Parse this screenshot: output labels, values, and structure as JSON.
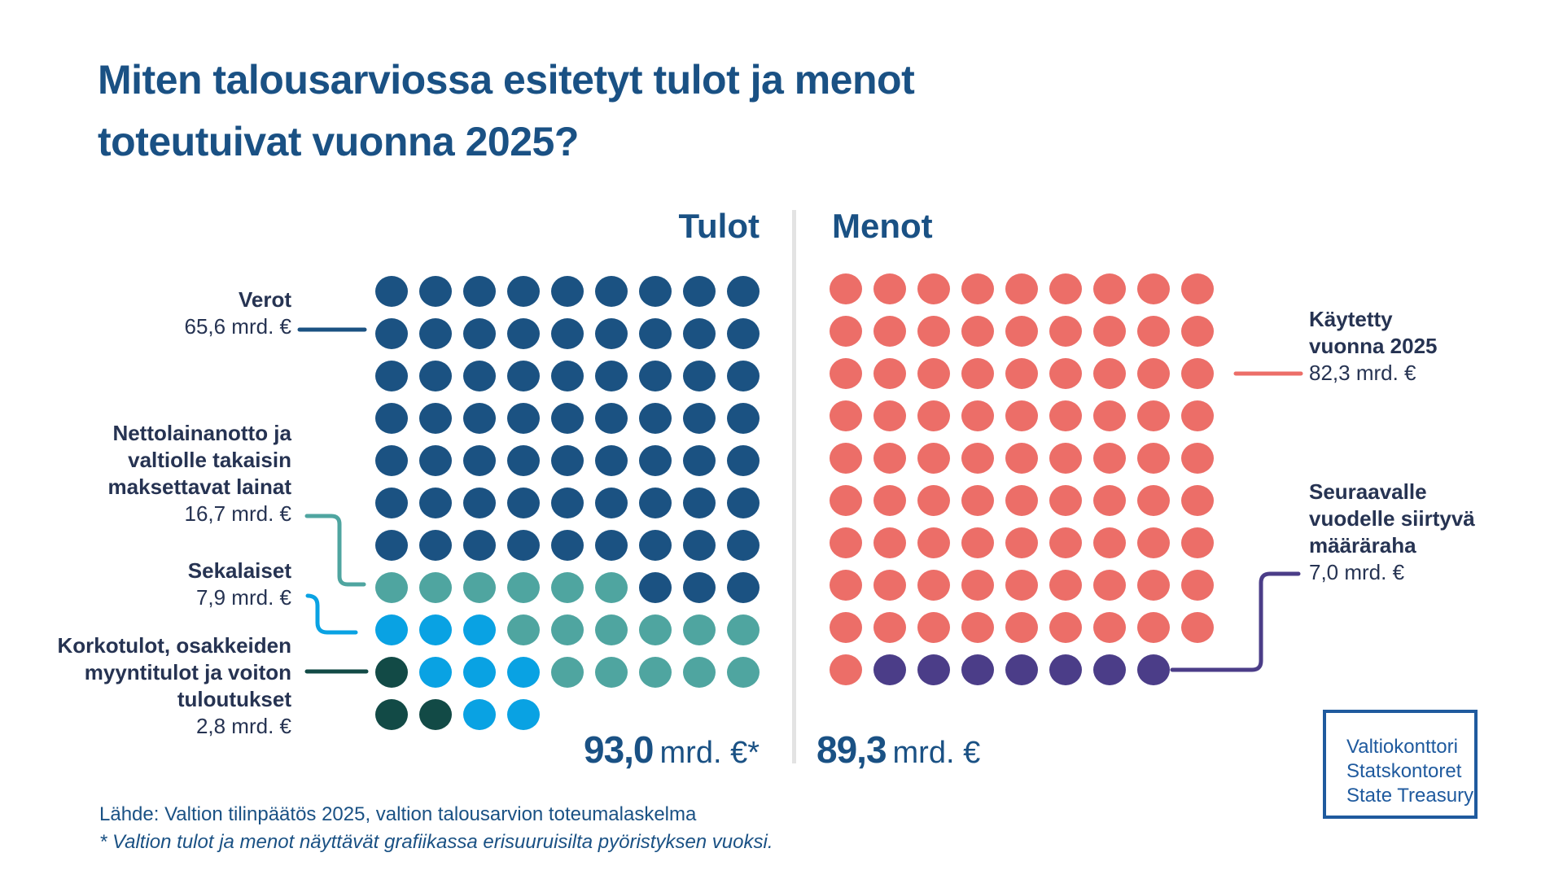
{
  "header": {
    "title_lines": [
      "Miten talousarviossa esitetyt tulot ja menot",
      "toteutuivat vuonna 2025?"
    ]
  },
  "palette": {
    "verot": "#1b5282",
    "netto": "#4fa5a0",
    "seka": "#09a2e3",
    "korko": "#124a46",
    "kaytetty": "#ec6e68",
    "seuraava": "#4b3d88",
    "heading_blue": "#1a5184",
    "label_navy": "#263352",
    "divider_gray": "#e3e3e3",
    "logo_blue": "#1f5a9e"
  },
  "chart_data": {
    "type": "waffle",
    "unit": "mrd. €",
    "dot_value": 1,
    "letter_to_category": {
      "B": "verot",
      "T": "netto",
      "L": "seka",
      "G": "korko",
      "S": "kaytetty",
      "P": "seuraava"
    },
    "columns": [
      {
        "key": "tulot",
        "header": "Tulot",
        "total_value": "93,0",
        "total_unit": "mrd. €*",
        "total_numeric": 93.0,
        "grid_size": {
          "cols": 9,
          "rows": 11
        },
        "grid_rows": [
          "BBBBBBBBB",
          "BBBBBBBBB",
          "BBBBBBBBB",
          "BBBBBBBBB",
          "BBBBBBBBB",
          "BBBBBBBBB",
          "BBBBBBBBB",
          "TTTTTTBBB",
          "LLLTTTTTT",
          "GLLLTTTTT",
          "GGLL"
        ],
        "categories": [
          {
            "key": "verot",
            "letter": "B",
            "label_lines": [
              "Verot"
            ],
            "value_label": "65,6 mrd. €",
            "value": 65.6,
            "color": "#1b5282",
            "dot_count": 66
          },
          {
            "key": "netto",
            "letter": "T",
            "label_lines": [
              "Nettolainanotto ja",
              "valtiolle takaisin",
              "maksettavat lainat"
            ],
            "value_label": "16,7 mrd. €",
            "value": 16.7,
            "color": "#4fa5a0",
            "dot_count": 17
          },
          {
            "key": "seka",
            "letter": "L",
            "label_lines": [
              "Sekalaiset"
            ],
            "value_label": "7,9 mrd. €",
            "value": 7.9,
            "color": "#09a2e3",
            "dot_count": 8
          },
          {
            "key": "korko",
            "letter": "G",
            "label_lines": [
              "Korkotulot, osakkeiden",
              "myyntitulot ja voiton",
              "tuloutukset"
            ],
            "value_label": "2,8 mrd. €",
            "value": 2.8,
            "color": "#124a46",
            "dot_count": 3
          }
        ]
      },
      {
        "key": "menot",
        "header": "Menot",
        "total_value": "89,3",
        "total_unit": "mrd. €",
        "total_numeric": 89.3,
        "grid_size": {
          "cols": 9,
          "rows": 10
        },
        "grid_rows": [
          "SSSSSSSSS",
          "SSSSSSSSS",
          "SSSSSSSSS",
          "SSSSSSSSS",
          "SSSSSSSSS",
          "SSSSSSSSS",
          "SSSSSSSSS",
          "SSSSSSSSS",
          "SSSSSSSSS",
          "SPPPPPPP"
        ],
        "categories": [
          {
            "key": "kaytetty",
            "letter": "S",
            "label_lines": [
              "Käytetty",
              "vuonna 2025"
            ],
            "value_label": "82,3 mrd. €",
            "value": 82.3,
            "color": "#ec6e68",
            "dot_count": 82
          },
          {
            "key": "seuraava",
            "letter": "P",
            "label_lines": [
              "Seuraavalle",
              "vuodelle siirtyvä",
              "määräraha"
            ],
            "value_label": "7,0 mrd. €",
            "value": 7.0,
            "color": "#4b3d88",
            "dot_count": 7
          }
        ]
      }
    ]
  },
  "footer": {
    "source": "Lähde: Valtion tilinpäätös 2025, valtion talousarvion toteumalaskelma",
    "footnote": "* Valtion tulot ja menot näyttävät grafiikassa erisuuruisilta pyöristyksen vuoksi."
  },
  "logo": {
    "lines": [
      "Valtiokonttori",
      "Statskontoret",
      "State Treasury"
    ]
  }
}
